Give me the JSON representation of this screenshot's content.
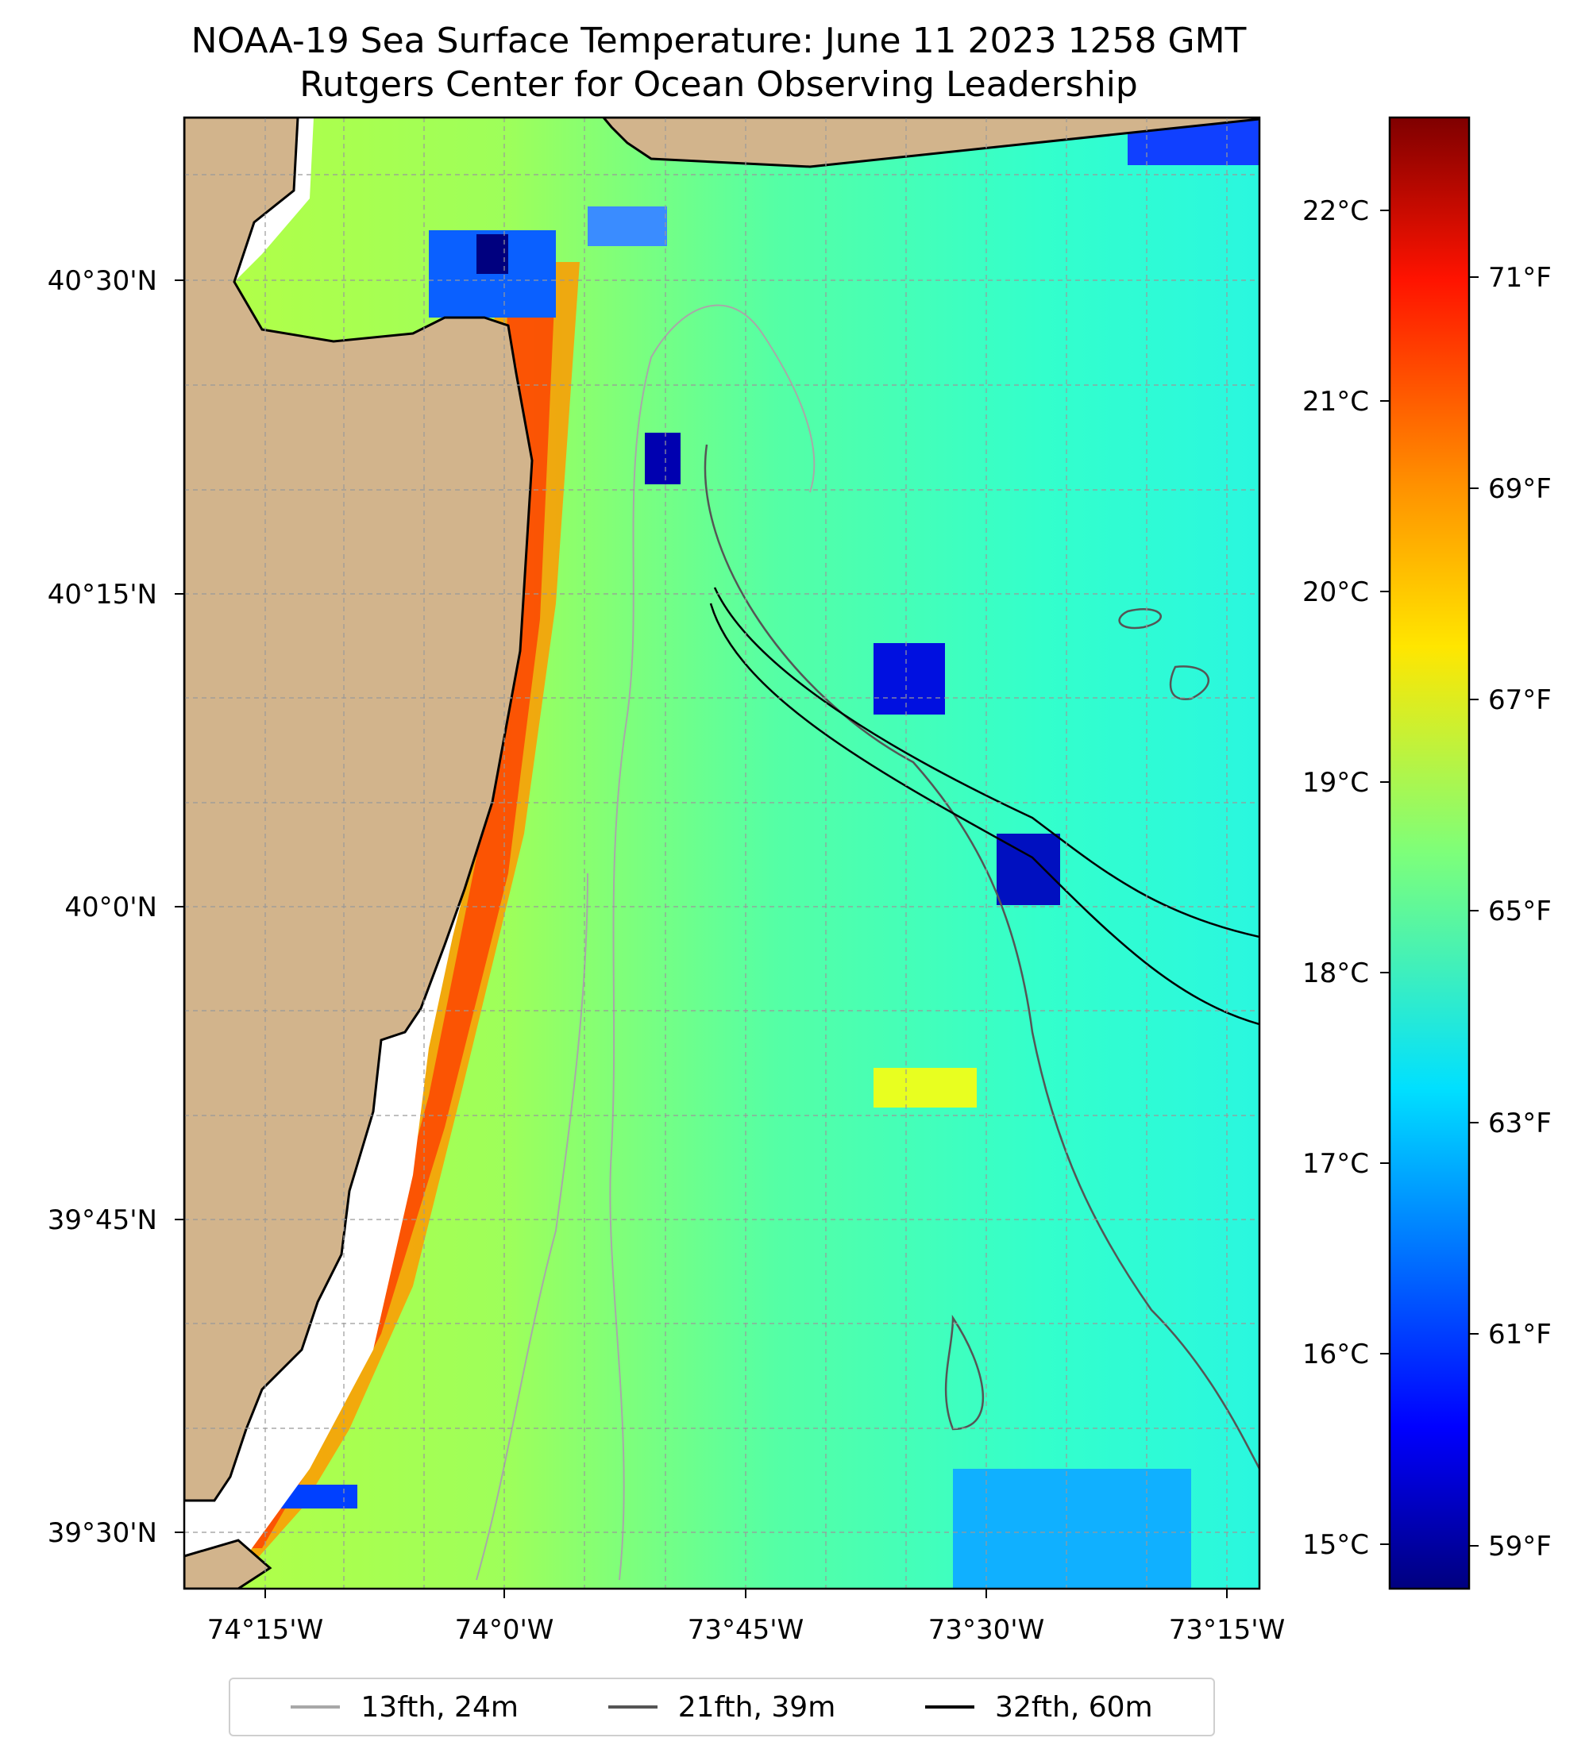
{
  "title_line1": "NOAA-19 Sea Surface Temperature: June 11 2023 1258 GMT",
  "title_line2": "Rutgers Center for Ocean Observing Leadership",
  "lat_labels": [
    "40°30'N",
    "40°15'N",
    "40°0'N",
    "39°45'N",
    "39°30'N"
  ],
  "lon_labels": [
    "74°15'W",
    "74°0'W",
    "73°45'W",
    "73°30'W",
    "73°15'W"
  ],
  "colorbar": {
    "celsius_labels": [
      "22°C",
      "21°C",
      "20°C",
      "19°C",
      "18°C",
      "17°C",
      "16°C",
      "15°C"
    ],
    "fahrenheit_labels": [
      "71°F",
      "69°F",
      "67°F",
      "65°F",
      "63°F",
      "61°F",
      "59°F"
    ],
    "colormap": "jet"
  },
  "legend": [
    {
      "label": "13fth, 24m",
      "color": "#a8a8a8"
    },
    {
      "label": "21fth, 39m",
      "color": "#555555"
    },
    {
      "label": "32fth, 60m",
      "color": "#000000"
    }
  ],
  "colors": {
    "land": "#d2b48c",
    "ocean_dominant": "#33ffc8",
    "nearshore_warm": "#a6ff52"
  }
}
